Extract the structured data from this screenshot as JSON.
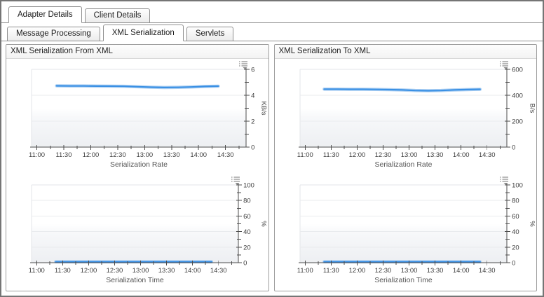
{
  "tabs_primary": [
    {
      "label": "Adapter Details",
      "active": true
    },
    {
      "label": "Client Details",
      "active": false
    }
  ],
  "tabs_secondary": [
    {
      "label": "Message Processing",
      "active": false
    },
    {
      "label": "XML Serialization",
      "active": true
    },
    {
      "label": "Servlets",
      "active": false
    }
  ],
  "panels": [
    {
      "title": "XML Serialization From XML"
    },
    {
      "title": "XML Serialization To XML"
    }
  ],
  "icons": {
    "chart_menu": "legend-menu-icon"
  },
  "colors": {
    "line": "#3a90e4",
    "line_halo": "#a9cdf2",
    "axis": "#4d4d4d",
    "grid": "#e9ebee",
    "plot_border": "#e3e5e8",
    "tick_text": "#3c3c3c",
    "title_text": "#555555",
    "icon": "#8c8c8c"
  },
  "chart_data": [
    {
      "panel": 0,
      "type": "line",
      "title": "Serialization Rate",
      "x_tick_labels": [
        "11:00",
        "11:30",
        "12:00",
        "12:30",
        "13:00",
        "13:30",
        "14:00",
        "14:30"
      ],
      "x_major_minutes": [
        660,
        690,
        720,
        750,
        780,
        810,
        840,
        870
      ],
      "x_minor_minutes": [
        675,
        705,
        735,
        765,
        795,
        825,
        855,
        885
      ],
      "x_domain_minutes": [
        654,
        893
      ],
      "ylabel": "KB/s",
      "ylim": [
        0,
        6
      ],
      "y_major_ticks": [
        0,
        2,
        4,
        6
      ],
      "y_minor_ticks": [
        1,
        3,
        5
      ],
      "grid": true,
      "series": [
        {
          "x_minutes": [
            682,
            697,
            712,
            727,
            742,
            757,
            772,
            787,
            802,
            817,
            832,
            847,
            862
          ],
          "values": [
            4.73,
            4.72,
            4.72,
            4.71,
            4.7,
            4.69,
            4.66,
            4.62,
            4.6,
            4.61,
            4.64,
            4.68,
            4.7
          ]
        }
      ]
    },
    {
      "panel": 0,
      "type": "line",
      "title": "Serialization Time",
      "x_tick_labels": [
        "11:00",
        "11:30",
        "12:00",
        "12:30",
        "13:00",
        "13:30",
        "14:00",
        "14:30"
      ],
      "x_major_minutes": [
        660,
        690,
        720,
        750,
        780,
        810,
        840,
        870
      ],
      "x_minor_minutes": [
        675,
        705,
        735,
        765,
        795,
        825,
        855,
        885
      ],
      "x_domain_minutes": [
        654,
        893
      ],
      "ylabel": "%",
      "ylim": [
        0,
        100
      ],
      "y_major_ticks": [
        0,
        20,
        40,
        60,
        80,
        100
      ],
      "y_minor_ticks": [
        10,
        30,
        50,
        70,
        90
      ],
      "grid": true,
      "series": [
        {
          "x_minutes": [
            682,
            697,
            712,
            727,
            742,
            757,
            772,
            787,
            802,
            817,
            832,
            847,
            862
          ],
          "values": [
            1.2,
            1.2,
            1.2,
            1.2,
            1.2,
            1.2,
            1.2,
            1.2,
            1.2,
            1.2,
            1.2,
            1.2,
            1.2
          ]
        }
      ]
    },
    {
      "panel": 1,
      "type": "line",
      "title": "Serialization Rate",
      "x_tick_labels": [
        "11:00",
        "11:30",
        "12:00",
        "12:30",
        "13:00",
        "13:30",
        "14:00",
        "14:30"
      ],
      "x_major_minutes": [
        660,
        690,
        720,
        750,
        780,
        810,
        840,
        870
      ],
      "x_minor_minutes": [
        675,
        705,
        735,
        765,
        795,
        825,
        855,
        885
      ],
      "x_domain_minutes": [
        654,
        893
      ],
      "ylabel": "B/s",
      "ylim": [
        0,
        600
      ],
      "y_major_ticks": [
        0,
        200,
        400,
        600
      ],
      "y_minor_ticks": [
        100,
        300,
        500
      ],
      "grid": true,
      "series": [
        {
          "x_minutes": [
            682,
            697,
            712,
            727,
            742,
            757,
            772,
            787,
            802,
            817,
            832,
            847,
            862
          ],
          "values": [
            447,
            447,
            446,
            446,
            445,
            443,
            441,
            437,
            435,
            437,
            441,
            444,
            446
          ]
        }
      ]
    },
    {
      "panel": 1,
      "type": "line",
      "title": "Serialization Time",
      "x_tick_labels": [
        "11:00",
        "11:30",
        "12:00",
        "12:30",
        "13:00",
        "13:30",
        "14:00",
        "14:30"
      ],
      "x_major_minutes": [
        660,
        690,
        720,
        750,
        780,
        810,
        840,
        870
      ],
      "x_minor_minutes": [
        675,
        705,
        735,
        765,
        795,
        825,
        855,
        885
      ],
      "x_domain_minutes": [
        654,
        893
      ],
      "ylabel": "%",
      "ylim": [
        0,
        100
      ],
      "y_major_ticks": [
        0,
        20,
        40,
        60,
        80,
        100
      ],
      "y_minor_ticks": [
        10,
        30,
        50,
        70,
        90
      ],
      "grid": true,
      "series": [
        {
          "x_minutes": [
            682,
            697,
            712,
            727,
            742,
            757,
            772,
            787,
            802,
            817,
            832,
            847,
            862
          ],
          "values": [
            1.2,
            1.2,
            1.2,
            1.2,
            1.2,
            1.2,
            1.2,
            1.2,
            1.2,
            1.2,
            1.2,
            1.2,
            1.2
          ]
        }
      ]
    }
  ]
}
